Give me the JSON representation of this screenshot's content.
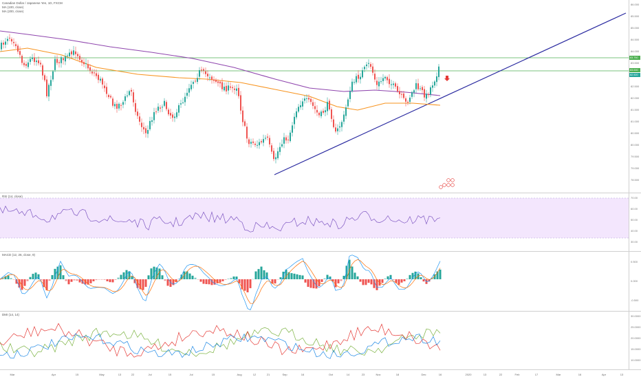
{
  "main_legend": {
    "title": "Canadian Dollar / Japanese Yen, 1D, FXCM",
    "ma1": "MA (100, close)",
    "ma2": "MA (200, close)"
  },
  "price_scale": [
    "86.000",
    "85.500",
    "85.000",
    "84.500",
    "84.000",
    "83.500",
    "83.000",
    "82.500",
    "82.000",
    "81.500",
    "81.000",
    "80.500",
    "80.000",
    "79.500",
    "79.000",
    "78.500"
  ],
  "price_tags": {
    "resistance_top": "83.750",
    "resistance_mid": "83.000",
    "last_price": "82.920"
  },
  "rsi": {
    "legend": "RSI (14, close)",
    "scale": [
      "70.00",
      "60.00",
      "50.00",
      "40.00",
      "30.00"
    ]
  },
  "macd": {
    "legend": "MACD (12, 26, close, 9)",
    "scale": [
      "0.500",
      "0.000",
      "-0.500"
    ]
  },
  "dmi": {
    "legend": "DMI (14, 14)",
    "scale": [
      "30.0000",
      "25.0000",
      "20.0000",
      "15.0000",
      "10.0000"
    ]
  },
  "time_axis": [
    "Mar",
    "Apr",
    "15",
    "May",
    "13",
    "22",
    "Jul",
    "15",
    "Jul",
    "15",
    "Aug",
    "12",
    "21",
    "Sep",
    "16",
    "Oct",
    "14",
    "23",
    "Nov",
    "18",
    "Dec",
    "16",
    "2020",
    "13",
    "22",
    "Feb",
    "17",
    "Mar",
    "16",
    "Apr",
    "13"
  ],
  "colors": {
    "up": "#26a69a",
    "down": "#ef5350",
    "ma100": "#f7931e",
    "ma200": "#8e44ad",
    "trendline": "#2a2aa0",
    "level": "#4caf50",
    "rsi": "#7e57c2",
    "rsi_band": "#f3e6fd",
    "macd": "#2196f3",
    "signal": "#ff6d00",
    "dmi_plus": "#7cb342",
    "dmi_minus": "#e53935",
    "adx": "#1e88e5"
  },
  "icons": {
    "arrow": "down-arrow-icon",
    "events": "economic-events-icon"
  }
}
